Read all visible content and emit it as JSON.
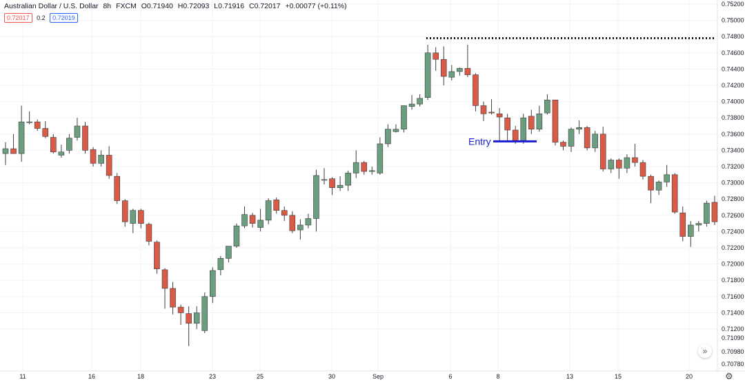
{
  "header": {
    "symbol": "Australian Dollar / U.S. Dollar",
    "interval": "8h",
    "source": "FXCM",
    "open": "O0.71940",
    "high": "H0.72093",
    "low": "L0.71916",
    "close": "C0.72017",
    "change": "+0.00077 (+0.11%)",
    "bid": "0.72017",
    "spread": "0.2",
    "ask": "0.72019"
  },
  "colors": {
    "up": "#6a9e7f",
    "down": "#d95a47",
    "entry": "#1b1bd4"
  },
  "annotations": {
    "entry_label": "Entry"
  },
  "chart_data": {
    "type": "candlestick",
    "y_ticks": [
      "0.75200",
      "0.75000",
      "0.74800",
      "0.74600",
      "0.74400",
      "0.74200",
      "0.74000",
      "0.73800",
      "0.73600",
      "0.73400",
      "0.73200",
      "0.73000",
      "0.72800",
      "0.72600",
      "0.72400",
      "0.72200",
      "0.72000",
      "0.71800",
      "0.71600",
      "0.71400",
      "0.71200",
      "0.71090",
      "0.70980",
      "0.70780"
    ],
    "x_ticks": [
      "11",
      "16",
      "18",
      "23",
      "25",
      "30",
      "Sep",
      "6",
      "8",
      "13",
      "15",
      "20"
    ],
    "candles": [
      {
        "o": 0.7336,
        "h": 0.735,
        "l": 0.7322,
        "c": 0.7342
      },
      {
        "o": 0.7342,
        "h": 0.736,
        "l": 0.7336,
        "c": 0.7336
      },
      {
        "o": 0.7336,
        "h": 0.7395,
        "l": 0.7326,
        "c": 0.7375
      },
      {
        "o": 0.7375,
        "h": 0.7388,
        "l": 0.7372,
        "c": 0.7375
      },
      {
        "o": 0.7375,
        "h": 0.7378,
        "l": 0.7364,
        "c": 0.7367
      },
      {
        "o": 0.7367,
        "h": 0.7376,
        "l": 0.7355,
        "c": 0.7357
      },
      {
        "o": 0.7356,
        "h": 0.736,
        "l": 0.7336,
        "c": 0.7338
      },
      {
        "o": 0.7334,
        "h": 0.7347,
        "l": 0.7331,
        "c": 0.7338
      },
      {
        "o": 0.734,
        "h": 0.736,
        "l": 0.7336,
        "c": 0.7355
      },
      {
        "o": 0.7356,
        "h": 0.738,
        "l": 0.7352,
        "c": 0.737
      },
      {
        "o": 0.737,
        "h": 0.7375,
        "l": 0.7336,
        "c": 0.734
      },
      {
        "o": 0.7341,
        "h": 0.7344,
        "l": 0.732,
        "c": 0.7324
      },
      {
        "o": 0.7324,
        "h": 0.734,
        "l": 0.732,
        "c": 0.7334
      },
      {
        "o": 0.7334,
        "h": 0.7345,
        "l": 0.7305,
        "c": 0.7309
      },
      {
        "o": 0.7308,
        "h": 0.7312,
        "l": 0.7274,
        "c": 0.7278
      },
      {
        "o": 0.7278,
        "h": 0.728,
        "l": 0.7246,
        "c": 0.7252
      },
      {
        "o": 0.725,
        "h": 0.7268,
        "l": 0.7238,
        "c": 0.7266
      },
      {
        "o": 0.7266,
        "h": 0.7268,
        "l": 0.7244,
        "c": 0.725
      },
      {
        "o": 0.7249,
        "h": 0.7251,
        "l": 0.7223,
        "c": 0.7228
      },
      {
        "o": 0.7227,
        "h": 0.7229,
        "l": 0.7188,
        "c": 0.7194
      },
      {
        "o": 0.7193,
        "h": 0.7195,
        "l": 0.7145,
        "c": 0.717
      },
      {
        "o": 0.717,
        "h": 0.7178,
        "l": 0.7138,
        "c": 0.7147
      },
      {
        "o": 0.7147,
        "h": 0.715,
        "l": 0.7125,
        "c": 0.714
      },
      {
        "o": 0.7139,
        "h": 0.7148,
        "l": 0.7099,
        "c": 0.7127
      },
      {
        "o": 0.7127,
        "h": 0.7148,
        "l": 0.712,
        "c": 0.714
      },
      {
        "o": 0.7118,
        "h": 0.7165,
        "l": 0.7115,
        "c": 0.716
      },
      {
        "o": 0.716,
        "h": 0.7196,
        "l": 0.7152,
        "c": 0.7192
      },
      {
        "o": 0.7193,
        "h": 0.721,
        "l": 0.7186,
        "c": 0.7207
      },
      {
        "o": 0.7207,
        "h": 0.7222,
        "l": 0.7202,
        "c": 0.7222
      },
      {
        "o": 0.7222,
        "h": 0.725,
        "l": 0.722,
        "c": 0.7247
      },
      {
        "o": 0.7247,
        "h": 0.7271,
        "l": 0.7244,
        "c": 0.7261
      },
      {
        "o": 0.726,
        "h": 0.7263,
        "l": 0.7245,
        "c": 0.725
      },
      {
        "o": 0.7245,
        "h": 0.7268,
        "l": 0.724,
        "c": 0.7254
      },
      {
        "o": 0.7254,
        "h": 0.7281,
        "l": 0.7249,
        "c": 0.7278
      },
      {
        "o": 0.7279,
        "h": 0.7282,
        "l": 0.7262,
        "c": 0.7266
      },
      {
        "o": 0.7266,
        "h": 0.7271,
        "l": 0.7253,
        "c": 0.726
      },
      {
        "o": 0.726,
        "h": 0.7265,
        "l": 0.7238,
        "c": 0.7241
      },
      {
        "o": 0.7242,
        "h": 0.7255,
        "l": 0.723,
        "c": 0.7248
      },
      {
        "o": 0.7248,
        "h": 0.7262,
        "l": 0.7244,
        "c": 0.7256
      },
      {
        "o": 0.7256,
        "h": 0.7316,
        "l": 0.724,
        "c": 0.7309
      },
      {
        "o": 0.7304,
        "h": 0.7318,
        "l": 0.7298,
        "c": 0.7304
      },
      {
        "o": 0.7305,
        "h": 0.7307,
        "l": 0.7285,
        "c": 0.7294
      },
      {
        "o": 0.7294,
        "h": 0.7308,
        "l": 0.729,
        "c": 0.7297
      },
      {
        "o": 0.7297,
        "h": 0.7315,
        "l": 0.729,
        "c": 0.7312
      },
      {
        "o": 0.7312,
        "h": 0.734,
        "l": 0.7306,
        "c": 0.7325
      },
      {
        "o": 0.7325,
        "h": 0.7327,
        "l": 0.731,
        "c": 0.7314
      },
      {
        "o": 0.7314,
        "h": 0.732,
        "l": 0.731,
        "c": 0.7315
      },
      {
        "o": 0.7312,
        "h": 0.7356,
        "l": 0.731,
        "c": 0.7348
      },
      {
        "o": 0.7348,
        "h": 0.7372,
        "l": 0.7344,
        "c": 0.7366
      },
      {
        "o": 0.7363,
        "h": 0.7372,
        "l": 0.7362,
        "c": 0.7366
      },
      {
        "o": 0.7366,
        "h": 0.7394,
        "l": 0.7362,
        "c": 0.7395
      },
      {
        "o": 0.7394,
        "h": 0.7408,
        "l": 0.739,
        "c": 0.7397
      },
      {
        "o": 0.7397,
        "h": 0.7409,
        "l": 0.7394,
        "c": 0.7404
      },
      {
        "o": 0.7405,
        "h": 0.747,
        "l": 0.7402,
        "c": 0.746
      },
      {
        "o": 0.746,
        "h": 0.7467,
        "l": 0.7438,
        "c": 0.7452
      },
      {
        "o": 0.7452,
        "h": 0.7468,
        "l": 0.742,
        "c": 0.7431
      },
      {
        "o": 0.743,
        "h": 0.7445,
        "l": 0.7426,
        "c": 0.7437
      },
      {
        "o": 0.7437,
        "h": 0.7442,
        "l": 0.7432,
        "c": 0.7441
      },
      {
        "o": 0.7441,
        "h": 0.747,
        "l": 0.743,
        "c": 0.7433
      },
      {
        "o": 0.7433,
        "h": 0.7435,
        "l": 0.7388,
        "c": 0.7395
      },
      {
        "o": 0.7395,
        "h": 0.74,
        "l": 0.7376,
        "c": 0.7385
      },
      {
        "o": 0.7387,
        "h": 0.7403,
        "l": 0.7384,
        "c": 0.7386
      },
      {
        "o": 0.7385,
        "h": 0.7392,
        "l": 0.7351,
        "c": 0.7381
      },
      {
        "o": 0.738,
        "h": 0.7385,
        "l": 0.735,
        "c": 0.7365
      },
      {
        "o": 0.7365,
        "h": 0.737,
        "l": 0.7348,
        "c": 0.7352
      },
      {
        "o": 0.7352,
        "h": 0.7385,
        "l": 0.7348,
        "c": 0.738
      },
      {
        "o": 0.7382,
        "h": 0.739,
        "l": 0.736,
        "c": 0.7366
      },
      {
        "o": 0.7366,
        "h": 0.7395,
        "l": 0.7363,
        "c": 0.7385
      },
      {
        "o": 0.7386,
        "h": 0.7409,
        "l": 0.7384,
        "c": 0.7402
      },
      {
        "o": 0.7402,
        "h": 0.7402,
        "l": 0.7346,
        "c": 0.735
      },
      {
        "o": 0.735,
        "h": 0.7352,
        "l": 0.734,
        "c": 0.7345
      },
      {
        "o": 0.7345,
        "h": 0.7368,
        "l": 0.7338,
        "c": 0.7366
      },
      {
        "o": 0.7366,
        "h": 0.7377,
        "l": 0.736,
        "c": 0.7368
      },
      {
        "o": 0.7368,
        "h": 0.737,
        "l": 0.734,
        "c": 0.7343
      },
      {
        "o": 0.7343,
        "h": 0.7364,
        "l": 0.7338,
        "c": 0.736
      },
      {
        "o": 0.736,
        "h": 0.7369,
        "l": 0.7314,
        "c": 0.7317
      },
      {
        "o": 0.7317,
        "h": 0.733,
        "l": 0.7312,
        "c": 0.7328
      },
      {
        "o": 0.7328,
        "h": 0.733,
        "l": 0.7305,
        "c": 0.7318
      },
      {
        "o": 0.7318,
        "h": 0.7335,
        "l": 0.7312,
        "c": 0.7331
      },
      {
        "o": 0.7331,
        "h": 0.7348,
        "l": 0.732,
        "c": 0.7325
      },
      {
        "o": 0.7325,
        "h": 0.7328,
        "l": 0.7304,
        "c": 0.7308
      },
      {
        "o": 0.7308,
        "h": 0.731,
        "l": 0.7275,
        "c": 0.7291
      },
      {
        "o": 0.7291,
        "h": 0.7303,
        "l": 0.7285,
        "c": 0.7301
      },
      {
        "o": 0.7301,
        "h": 0.7322,
        "l": 0.7295,
        "c": 0.731
      },
      {
        "o": 0.731,
        "h": 0.7312,
        "l": 0.7262,
        "c": 0.7264
      },
      {
        "o": 0.7263,
        "h": 0.7271,
        "l": 0.7228,
        "c": 0.7234
      },
      {
        "o": 0.7234,
        "h": 0.7253,
        "l": 0.7221,
        "c": 0.7248
      },
      {
        "o": 0.7248,
        "h": 0.7253,
        "l": 0.724,
        "c": 0.725
      },
      {
        "o": 0.725,
        "h": 0.7278,
        "l": 0.7246,
        "c": 0.7275
      },
      {
        "o": 0.7276,
        "h": 0.7284,
        "l": 0.7248,
        "c": 0.7252
      }
    ],
    "resistance_level": 0.7478,
    "entry_level": 0.7351
  }
}
